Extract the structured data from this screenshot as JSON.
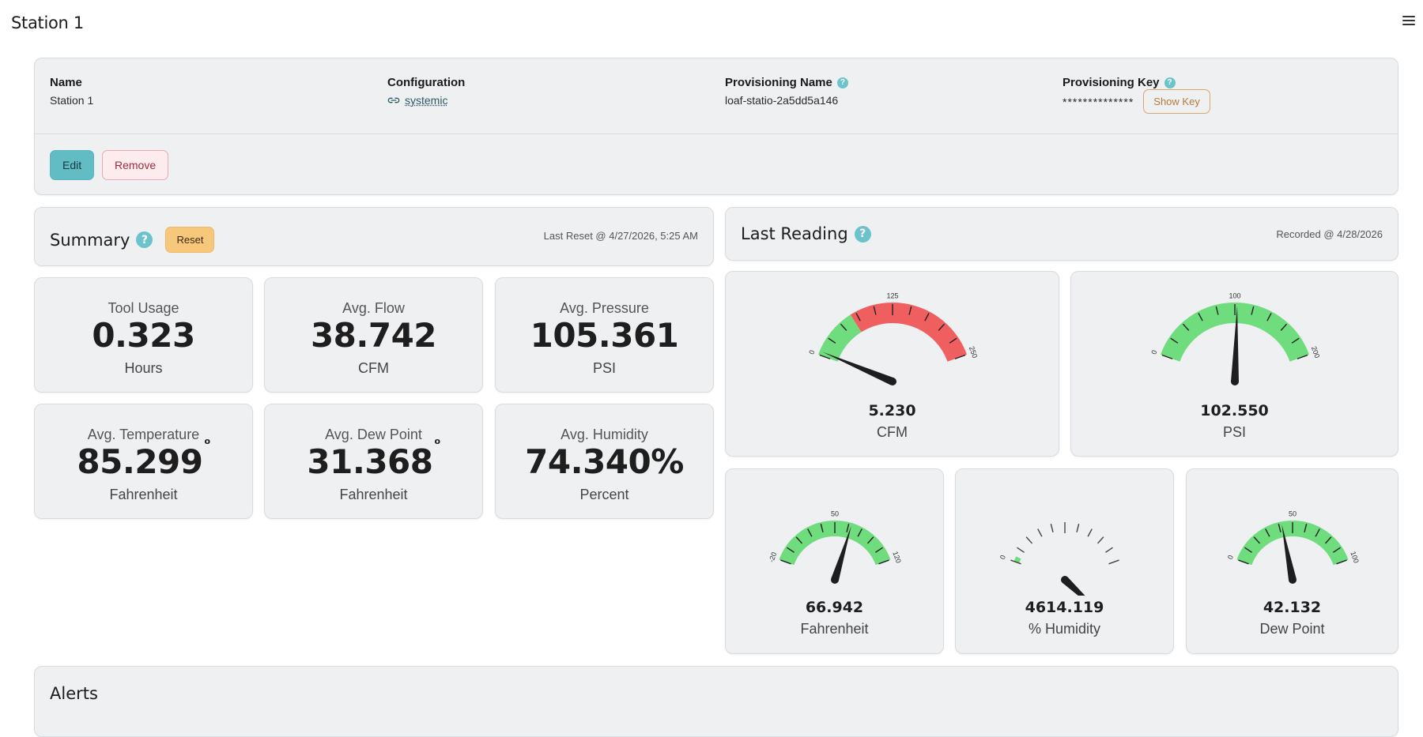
{
  "page": {
    "title": "Station 1"
  },
  "info": {
    "name_label": "Name",
    "name_value": "Station 1",
    "config_label": "Configuration",
    "config_value": "systemic",
    "prov_name_label": "Provisioning Name",
    "prov_name_value": "loaf-statio-2a5dd5a146",
    "prov_key_label": "Provisioning Key",
    "prov_key_value": "**************",
    "show_key_label": "Show Key",
    "edit_label": "Edit",
    "remove_label": "Remove"
  },
  "summary": {
    "title": "Summary",
    "reset_label": "Reset",
    "last_reset": "Last Reset @ 4/27/2026, 5:25 AM",
    "stats": [
      {
        "label": "Tool Usage",
        "value": "0.323",
        "unit": "Hours",
        "degree": ""
      },
      {
        "label": "Avg. Flow",
        "value": "38.742",
        "unit": "CFM",
        "degree": ""
      },
      {
        "label": "Avg. Pressure",
        "value": "105.361",
        "unit": "PSI",
        "degree": ""
      },
      {
        "label": "Avg. Temperature",
        "value": "85.299",
        "unit": "Fahrenheit",
        "degree": "o"
      },
      {
        "label": "Avg. Dew Point",
        "value": "31.368",
        "unit": "Fahrenheit",
        "degree": "o"
      },
      {
        "label": "Avg. Humidity",
        "value": "74.340%",
        "unit": "Percent",
        "degree": ""
      }
    ]
  },
  "reading": {
    "title": "Last Reading",
    "recorded": "Recorded @ 4/28/2026",
    "gauges": [
      {
        "value": 5.23,
        "display": "5.230",
        "unit": "CFM",
        "min": 0,
        "max": 250,
        "mid": 125,
        "min_label": "0",
        "mid_label": "125",
        "max_label": "250",
        "green_to": 0.27,
        "red_from": 0.27,
        "colored": true
      },
      {
        "value": 102.55,
        "display": "102.550",
        "unit": "PSI",
        "min": 0,
        "max": 200,
        "mid": 100,
        "min_label": "0",
        "mid_label": "100",
        "max_label": "200",
        "green_to": 1.0,
        "red_from": 1.0,
        "colored": true
      },
      {
        "value": 66.942,
        "display": "66.942",
        "unit": "Fahrenheit",
        "min": -20,
        "max": 120,
        "mid": 50,
        "min_label": "-20",
        "mid_label": "50",
        "max_label": "120",
        "green_to": 1.0,
        "red_from": 1.0,
        "colored": true
      },
      {
        "value": 4614.119,
        "display": "4614.119",
        "unit": "% Humidity",
        "min": 0,
        "max": 100,
        "mid": 50,
        "min_label": "0",
        "mid_label": "",
        "max_label": "",
        "green_to": 0.04,
        "red_from": 1.0,
        "colored": false
      },
      {
        "value": 42.132,
        "display": "42.132",
        "unit": "Dew Point",
        "min": 0,
        "max": 100,
        "mid": 50,
        "min_label": "0",
        "mid_label": "50",
        "max_label": "100",
        "green_to": 1.0,
        "red_from": 1.0,
        "colored": true
      }
    ]
  },
  "alerts": {
    "title": "Alerts"
  },
  "colors": {
    "green": "#6fdc7d",
    "red": "#ef5f5f",
    "accent": "#62bcc4"
  }
}
